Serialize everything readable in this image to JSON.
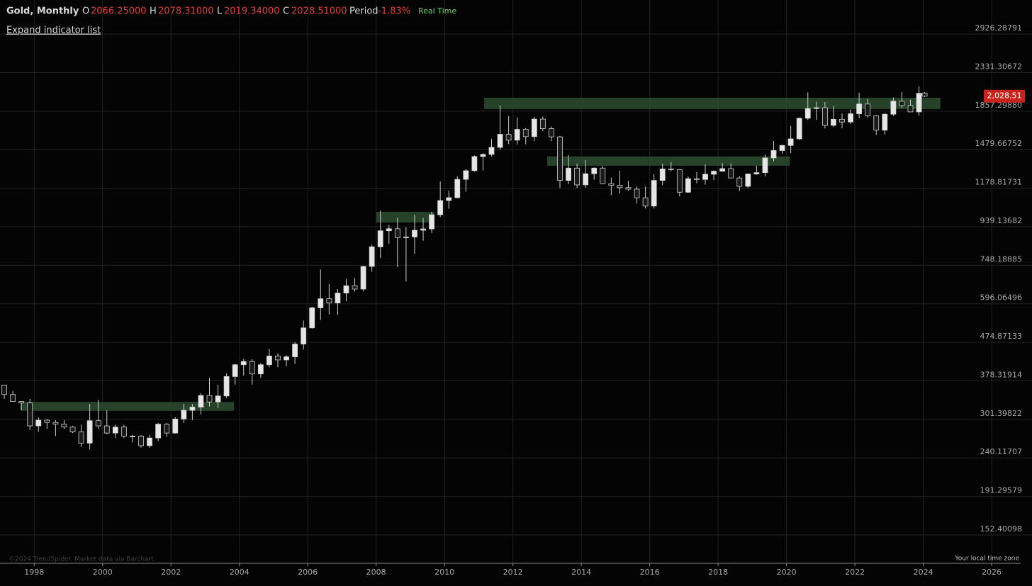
{
  "header": {
    "title": "Gold, Monthly",
    "open_label": "O",
    "open": "2066.25000",
    "high_label": "H",
    "high": "2078.31000",
    "low_label": "L",
    "low": "2019.34000",
    "close_label": "C",
    "close": "2028.51000",
    "period_label": "Period",
    "period": "-1.83%",
    "mode": "Real Time",
    "expand": "Expand indicator list"
  },
  "footer": {
    "copyright": "©2024 TrendSpider. Market data via Barchart.",
    "timezone": "Your local time zone"
  },
  "chart_data": {
    "type": "candlestick",
    "yscale": "log",
    "grid": true,
    "up_color": "#e6e6e6",
    "down_color": "#1a1a1a",
    "wick_color": "#d0d0d0",
    "zone_color": "#2a4a2e",
    "tag_color": "#c8231b",
    "xlim": [
      1997.0,
      2027.18
    ],
    "ylim": [
      128.9,
      3578
    ],
    "xticks": [
      1998,
      2000,
      2002,
      2004,
      2006,
      2008,
      2010,
      2012,
      2014,
      2016,
      2018,
      2020,
      2022,
      2024,
      2026
    ],
    "yticks": [
      2926.28791,
      2331.30672,
      {
        "value": 1857.2988,
        "label": "1857.29880"
      },
      1479.66752,
      1178.81731,
      939.13682,
      748.18885,
      596.06496,
      474.87133,
      378.31914,
      301.39822,
      240.11707,
      191.29579,
      152.40098
    ],
    "last_price": {
      "value": 2028.51,
      "label": "2,028.51"
    },
    "zones": [
      {
        "x": [
          2011.16,
          2024.5
        ],
        "y": [
          1880,
          2010
        ]
      },
      {
        "x": [
          2013.0,
          2020.1
        ],
        "y": [
          1346,
          1422
        ]
      },
      {
        "x": [
          2008.0,
          2009.7
        ],
        "y": [
          963,
          1025
        ]
      },
      {
        "x": [
          1997.6,
          2003.84
        ],
        "y": [
          317,
          334
        ]
      }
    ],
    "x": [
      1997.125,
      1997.375,
      1997.625,
      1997.875,
      1998.125,
      1998.375,
      1998.625,
      1998.875,
      1999.125,
      1999.375,
      1999.625,
      1999.875,
      2000.125,
      2000.375,
      2000.625,
      2000.875,
      2001.125,
      2001.375,
      2001.625,
      2001.875,
      2002.125,
      2002.375,
      2002.625,
      2002.875,
      2003.125,
      2003.375,
      2003.625,
      2003.875,
      2004.125,
      2004.375,
      2004.625,
      2004.875,
      2005.125,
      2005.375,
      2005.625,
      2005.875,
      2006.125,
      2006.375,
      2006.625,
      2006.875,
      2007.125,
      2007.375,
      2007.625,
      2007.875,
      2008.125,
      2008.375,
      2008.625,
      2008.875,
      2009.125,
      2009.375,
      2009.625,
      2009.875,
      2010.125,
      2010.375,
      2010.625,
      2010.875,
      2011.125,
      2011.375,
      2011.625,
      2011.875,
      2012.125,
      2012.375,
      2012.625,
      2012.875,
      2013.125,
      2013.375,
      2013.625,
      2013.875,
      2014.125,
      2014.375,
      2014.625,
      2014.875,
      2015.125,
      2015.375,
      2015.625,
      2015.875,
      2016.125,
      2016.375,
      2016.625,
      2016.875,
      2017.125,
      2017.375,
      2017.625,
      2017.875,
      2018.125,
      2018.375,
      2018.625,
      2018.875,
      2019.125,
      2019.375,
      2019.625,
      2019.875,
      2020.125,
      2020.375,
      2020.625,
      2020.875,
      2021.125,
      2021.375,
      2021.625,
      2021.875,
      2022.125,
      2022.375,
      2022.625,
      2022.875,
      2023.125,
      2023.375,
      2023.625,
      2023.875,
      2024.04
    ],
    "open": [
      369,
      349,
      335,
      332,
      290,
      300,
      296,
      293,
      288,
      280,
      262,
      299,
      290,
      278,
      288,
      273,
      273,
      258,
      270,
      293,
      278,
      302,
      318,
      324,
      347,
      334,
      346,
      388,
      416,
      424,
      394,
      416,
      438,
      428,
      436,
      470,
      517,
      582,
      614,
      599,
      635,
      663,
      650,
      743,
      834,
      917,
      928,
      881,
      884,
      920,
      927,
      1008,
      1096,
      1115,
      1242,
      1307,
      1421,
      1439,
      1500,
      1620,
      1565,
      1668,
      1598,
      1772,
      1675,
      1596,
      1234,
      1327,
      1202,
      1284,
      1327,
      1211,
      1199,
      1183,
      1172,
      1114,
      1061,
      1234,
      1321,
      1315,
      1151,
      1247,
      1241,
      1280,
      1303,
      1323,
      1252,
      1192,
      1282,
      1292,
      1409,
      1472,
      1517,
      1577,
      1781,
      1886,
      1895,
      1708,
      1770,
      1742,
      1829,
      1937,
      1807,
      1660,
      1824,
      1969,
      1919,
      1849,
      2066.25
    ],
    "high": [
      369,
      356,
      336,
      340,
      305,
      302,
      300,
      300,
      290,
      292,
      330,
      338,
      318,
      292,
      292,
      275,
      275,
      275,
      295,
      295,
      305,
      330,
      330,
      352,
      385,
      370,
      395,
      418,
      430,
      430,
      420,
      457,
      445,
      440,
      475,
      540,
      585,
      730,
      670,
      650,
      690,
      695,
      745,
      845,
      1033,
      950,
      990,
      935,
      1007,
      990,
      1025,
      1226,
      1162,
      1265,
      1320,
      1430,
      1448,
      1578,
      1920,
      1803,
      1790,
      1680,
      1795,
      1800,
      1697,
      1605,
      1434,
      1362,
      1392,
      1332,
      1345,
      1255,
      1307,
      1232,
      1191,
      1191,
      1282,
      1362,
      1375,
      1317,
      1264,
      1296,
      1357,
      1310,
      1366,
      1365,
      1265,
      1285,
      1346,
      1439,
      1557,
      1523,
      1703,
      1788,
      2075,
      1965,
      1959,
      1916,
      1834,
      1877,
      2070,
      1998,
      1814,
      1834,
      2014,
      2081,
      1987,
      2150,
      2078.31
    ],
    "low": [
      340,
      335,
      318,
      283,
      280,
      285,
      273,
      285,
      278,
      256,
      252,
      285,
      276,
      270,
      270,
      263,
      255,
      255,
      265,
      272,
      277,
      295,
      300,
      310,
      325,
      322,
      342,
      370,
      390,
      370,
      385,
      410,
      410,
      412,
      418,
      455,
      515,
      542,
      560,
      558,
      605,
      640,
      642,
      720,
      780,
      850,
      740,
      680,
      800,
      865,
      905,
      995,
      1045,
      1110,
      1155,
      1300,
      1308,
      1420,
      1480,
      1530,
      1525,
      1527,
      1555,
      1650,
      1555,
      1180,
      1207,
      1180,
      1182,
      1240,
      1208,
      1131,
      1142,
      1162,
      1077,
      1046,
      1046,
      1200,
      1303,
      1123,
      1146,
      1214,
      1204,
      1236,
      1302,
      1250,
      1160,
      1182,
      1276,
      1266,
      1381,
      1445,
      1451,
      1568,
      1764,
      1764,
      1677,
      1690,
      1680,
      1721,
      1781,
      1787,
      1615,
      1618,
      1805,
      1893,
      1848,
      1810,
      2019.34
    ],
    "close": [
      349,
      335,
      332,
      290,
      300,
      296,
      293,
      288,
      280,
      262,
      299,
      290,
      278,
      288,
      273,
      273,
      258,
      270,
      293,
      278,
      302,
      318,
      324,
      347,
      334,
      346,
      388,
      416,
      424,
      394,
      416,
      438,
      428,
      436,
      470,
      517,
      582,
      614,
      599,
      635,
      663,
      650,
      743,
      834,
      917,
      928,
      881,
      884,
      920,
      927,
      1008,
      1096,
      1115,
      1242,
      1307,
      1421,
      1439,
      1500,
      1620,
      1565,
      1668,
      1598,
      1772,
      1675,
      1596,
      1234,
      1327,
      1202,
      1284,
      1327,
      1211,
      1199,
      1183,
      1172,
      1114,
      1061,
      1234,
      1321,
      1315,
      1151,
      1247,
      1241,
      1280,
      1303,
      1323,
      1252,
      1192,
      1282,
      1292,
      1409,
      1472,
      1517,
      1577,
      1781,
      1886,
      1895,
      1708,
      1770,
      1742,
      1829,
      1937,
      1807,
      1660,
      1824,
      1969,
      1919,
      1849,
      2063,
      2028.51
    ]
  }
}
